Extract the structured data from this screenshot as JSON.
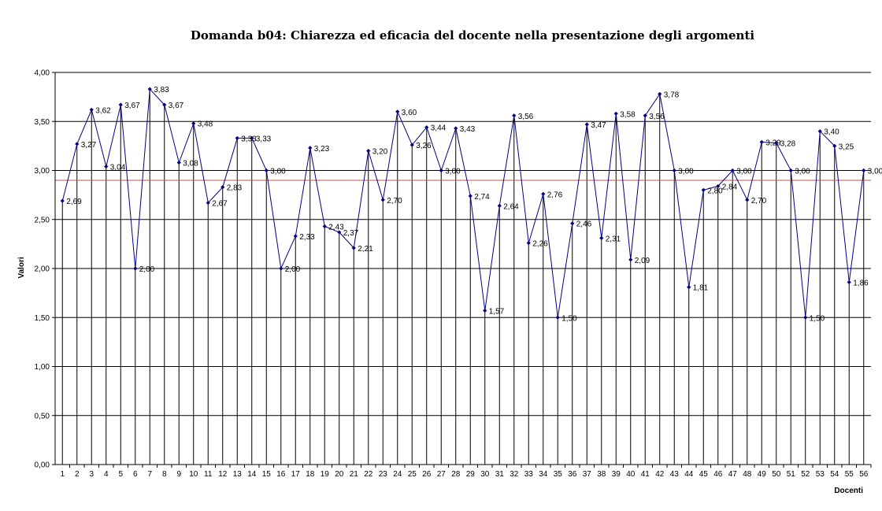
{
  "chart_data": {
    "type": "line",
    "title": "Domanda b04: Chiarezza ed eficacia del docente nella presentazione degli argomenti",
    "xlabel": "Docenti",
    "ylabel": "Valori",
    "ylim": [
      0,
      4
    ],
    "yticks": [
      "0,00",
      "0,50",
      "1,00",
      "1,50",
      "2,00",
      "2,50",
      "3,00",
      "3,50",
      "4,00"
    ],
    "reference_line": 2.9,
    "grid": "horizontal gridlines every 0,50 and vertical drop lines from each point to the x axis",
    "colors": {
      "series": "#000080",
      "reference": "#c0504d",
      "grid": "#000000"
    },
    "x": [
      1,
      2,
      3,
      4,
      5,
      6,
      7,
      8,
      9,
      10,
      11,
      12,
      13,
      14,
      15,
      16,
      17,
      18,
      19,
      20,
      21,
      22,
      23,
      24,
      25,
      26,
      27,
      28,
      29,
      30,
      31,
      32,
      33,
      34,
      35,
      36,
      37,
      38,
      39,
      40,
      41,
      42,
      43,
      44,
      45,
      46,
      47,
      48,
      49,
      50,
      51,
      52,
      53,
      54,
      55,
      56
    ],
    "values": [
      2.69,
      3.27,
      3.62,
      3.04,
      3.67,
      2.0,
      3.83,
      3.67,
      3.08,
      3.48,
      2.67,
      2.83,
      3.33,
      3.33,
      3.0,
      2.0,
      2.33,
      3.23,
      2.43,
      2.37,
      2.21,
      3.2,
      2.7,
      3.6,
      3.26,
      3.44,
      3.0,
      3.43,
      2.74,
      1.57,
      2.64,
      3.56,
      2.26,
      2.76,
      1.5,
      2.46,
      3.47,
      2.31,
      3.58,
      2.09,
      3.56,
      3.78,
      3.0,
      1.81,
      2.8,
      2.84,
      3.0,
      2.7,
      3.29,
      3.28,
      3.0,
      1.5,
      3.4,
      3.25,
      1.86,
      3.0
    ],
    "labels": [
      "2,69",
      "3,27",
      "3,62",
      "3,04",
      "3,67",
      "2,00",
      "3,83",
      "3,67",
      "3,08",
      "3,48",
      "2,67",
      "2,83",
      "3,33",
      "3,33",
      "3,00",
      "2,00",
      "2,33",
      "3,23",
      "2,43",
      "2,37",
      "2,21",
      "3,20",
      "2,70",
      "3,60",
      "3,26",
      "3,44",
      "3,00",
      "3,43",
      "2,74",
      "1,57",
      "2,64",
      "3,56",
      "2,26",
      "2,76",
      "1,50",
      "2,46",
      "3,47",
      "2,31",
      "3,58",
      "2,09",
      "3,56",
      "3,78",
      "3,00",
      "1,81",
      "2,80",
      "2,84",
      "3,00",
      "2,70",
      "3,29",
      "3,28",
      "3,00",
      "1,50",
      "3,40",
      "3,25",
      "1,86",
      "3,00"
    ]
  }
}
